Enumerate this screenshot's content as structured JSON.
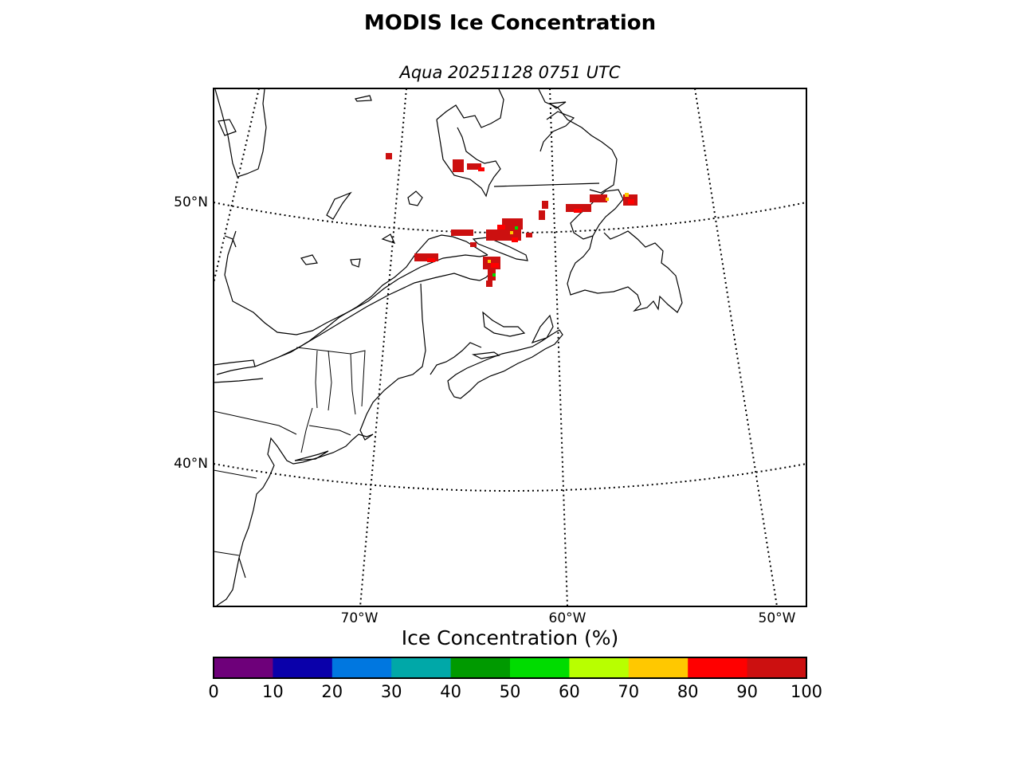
{
  "title": "MODIS Ice Concentration",
  "subtitle": "Aqua 20251128 0751 UTC",
  "map": {
    "lat_labels": [
      "50°N",
      "40°N"
    ],
    "lon_labels": [
      "70°W",
      "60°W",
      "50°W"
    ],
    "graticule_style": "dotted",
    "region": "Gulf of St. Lawrence / Atlantic Canada / NE United States"
  },
  "colorbar": {
    "label": "Ice Concentration (%)",
    "ticks": [
      "0",
      "10",
      "20",
      "30",
      "40",
      "50",
      "60",
      "70",
      "80",
      "90",
      "100"
    ],
    "colors": [
      "#6e007a",
      "#0a00aa",
      "#0077e0",
      "#00a8a8",
      "#009a00",
      "#00dc00",
      "#b8ff00",
      "#ffc800",
      "#ff0000",
      "#cc1010"
    ]
  },
  "ice_colors": {
    "dominant": "#cc1010",
    "secondary": "#ff0000",
    "sparse": "#ffc800",
    "rare": "#00dc00"
  }
}
